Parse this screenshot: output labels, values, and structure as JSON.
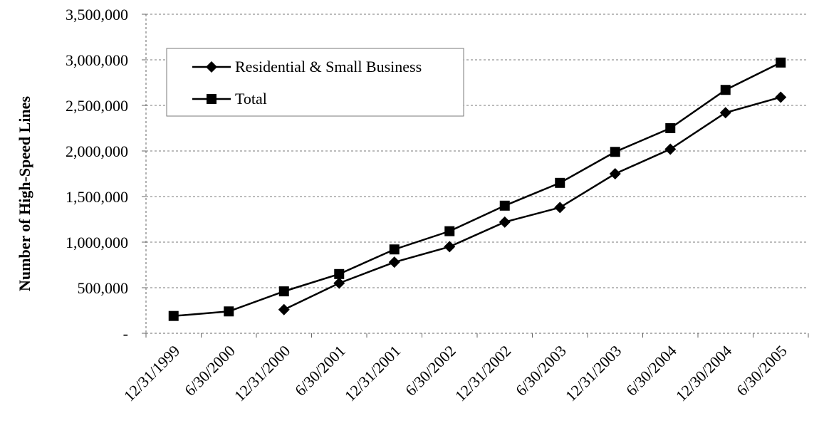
{
  "chart_data": {
    "type": "line",
    "ylabel": "Number of High-Speed Lines",
    "xlabel": "",
    "title": "",
    "categories": [
      "12/31/1999",
      "6/30/2000",
      "12/31/2000",
      "6/30/2001",
      "12/31/2001",
      "6/30/2002",
      "12/31/2002",
      "6/30/2003",
      "12/31/2003",
      "6/30/2004",
      "12/30/2004",
      "6/30/2005"
    ],
    "y_ticks": [
      "-",
      "500,000",
      "1,000,000",
      "1,500,000",
      "2,000,000",
      "2,500,000",
      "3,000,000",
      "3,500,000"
    ],
    "y_tick_values": [
      0,
      500000,
      1000000,
      1500000,
      2000000,
      2500000,
      3000000,
      3500000
    ],
    "ylim": [
      0,
      3500000
    ],
    "grid": true,
    "legend_position": "top-left",
    "series": [
      {
        "name": "Residential & Small Business",
        "marker": "diamond",
        "values": [
          null,
          null,
          260000,
          550000,
          780000,
          950000,
          1220000,
          1380000,
          1750000,
          2020000,
          2420000,
          2590000
        ]
      },
      {
        "name": "Total",
        "marker": "square",
        "values": [
          190000,
          240000,
          460000,
          650000,
          920000,
          1120000,
          1400000,
          1650000,
          1990000,
          2250000,
          2670000,
          2970000
        ]
      }
    ]
  }
}
